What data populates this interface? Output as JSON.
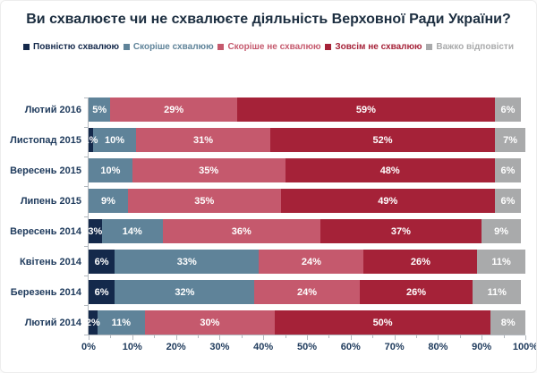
{
  "title": "Ви схвалюєте чи не схвалюєте діяльність Верховної Ради України?",
  "chart_data": {
    "type": "bar",
    "orientation": "horizontal",
    "stacked": true,
    "unit": "%",
    "title": "Ви схвалюєте чи не схвалюєте діяльність Верховної Ради України?",
    "categories": [
      "Лютий 2016",
      "Листопад 2015",
      "Вересень 2015",
      "Липень 2015",
      "Вересень 2014",
      "Квітень 2014",
      "Березень 2014",
      "Лютий 2014"
    ],
    "series": [
      {
        "name": "Повністю схвалюю",
        "color": "#14294b",
        "values": [
          0,
          1,
          0,
          0,
          3,
          6,
          6,
          2
        ]
      },
      {
        "name": "Скоріше схвалюю",
        "color": "#5f8399",
        "values": [
          5,
          10,
          10,
          9,
          14,
          33,
          32,
          11
        ]
      },
      {
        "name": "Скоріше не схвалюю",
        "color": "#c5596d",
        "values": [
          29,
          31,
          35,
          35,
          36,
          24,
          24,
          30
        ]
      },
      {
        "name": "Зовсім не схвалюю",
        "color": "#a52238",
        "values": [
          59,
          52,
          48,
          49,
          37,
          26,
          26,
          50
        ]
      },
      {
        "name": "Важко відповісти",
        "color": "#a9aaab",
        "values": [
          6,
          7,
          6,
          6,
          9,
          11,
          11,
          8
        ]
      }
    ],
    "xlim": [
      0,
      100
    ],
    "x_ticks": [
      "0%",
      "10%",
      "20%",
      "30%",
      "40%",
      "50%",
      "60%",
      "70%",
      "80%",
      "90%",
      "100%"
    ],
    "x_tick_step": 10,
    "x_minor_tick_step": 5,
    "xlabel": "",
    "ylabel": "",
    "legend_position": "top",
    "grid": false,
    "value_label_color": "#ffffff",
    "axis_text_color": "#1e3a5c"
  }
}
